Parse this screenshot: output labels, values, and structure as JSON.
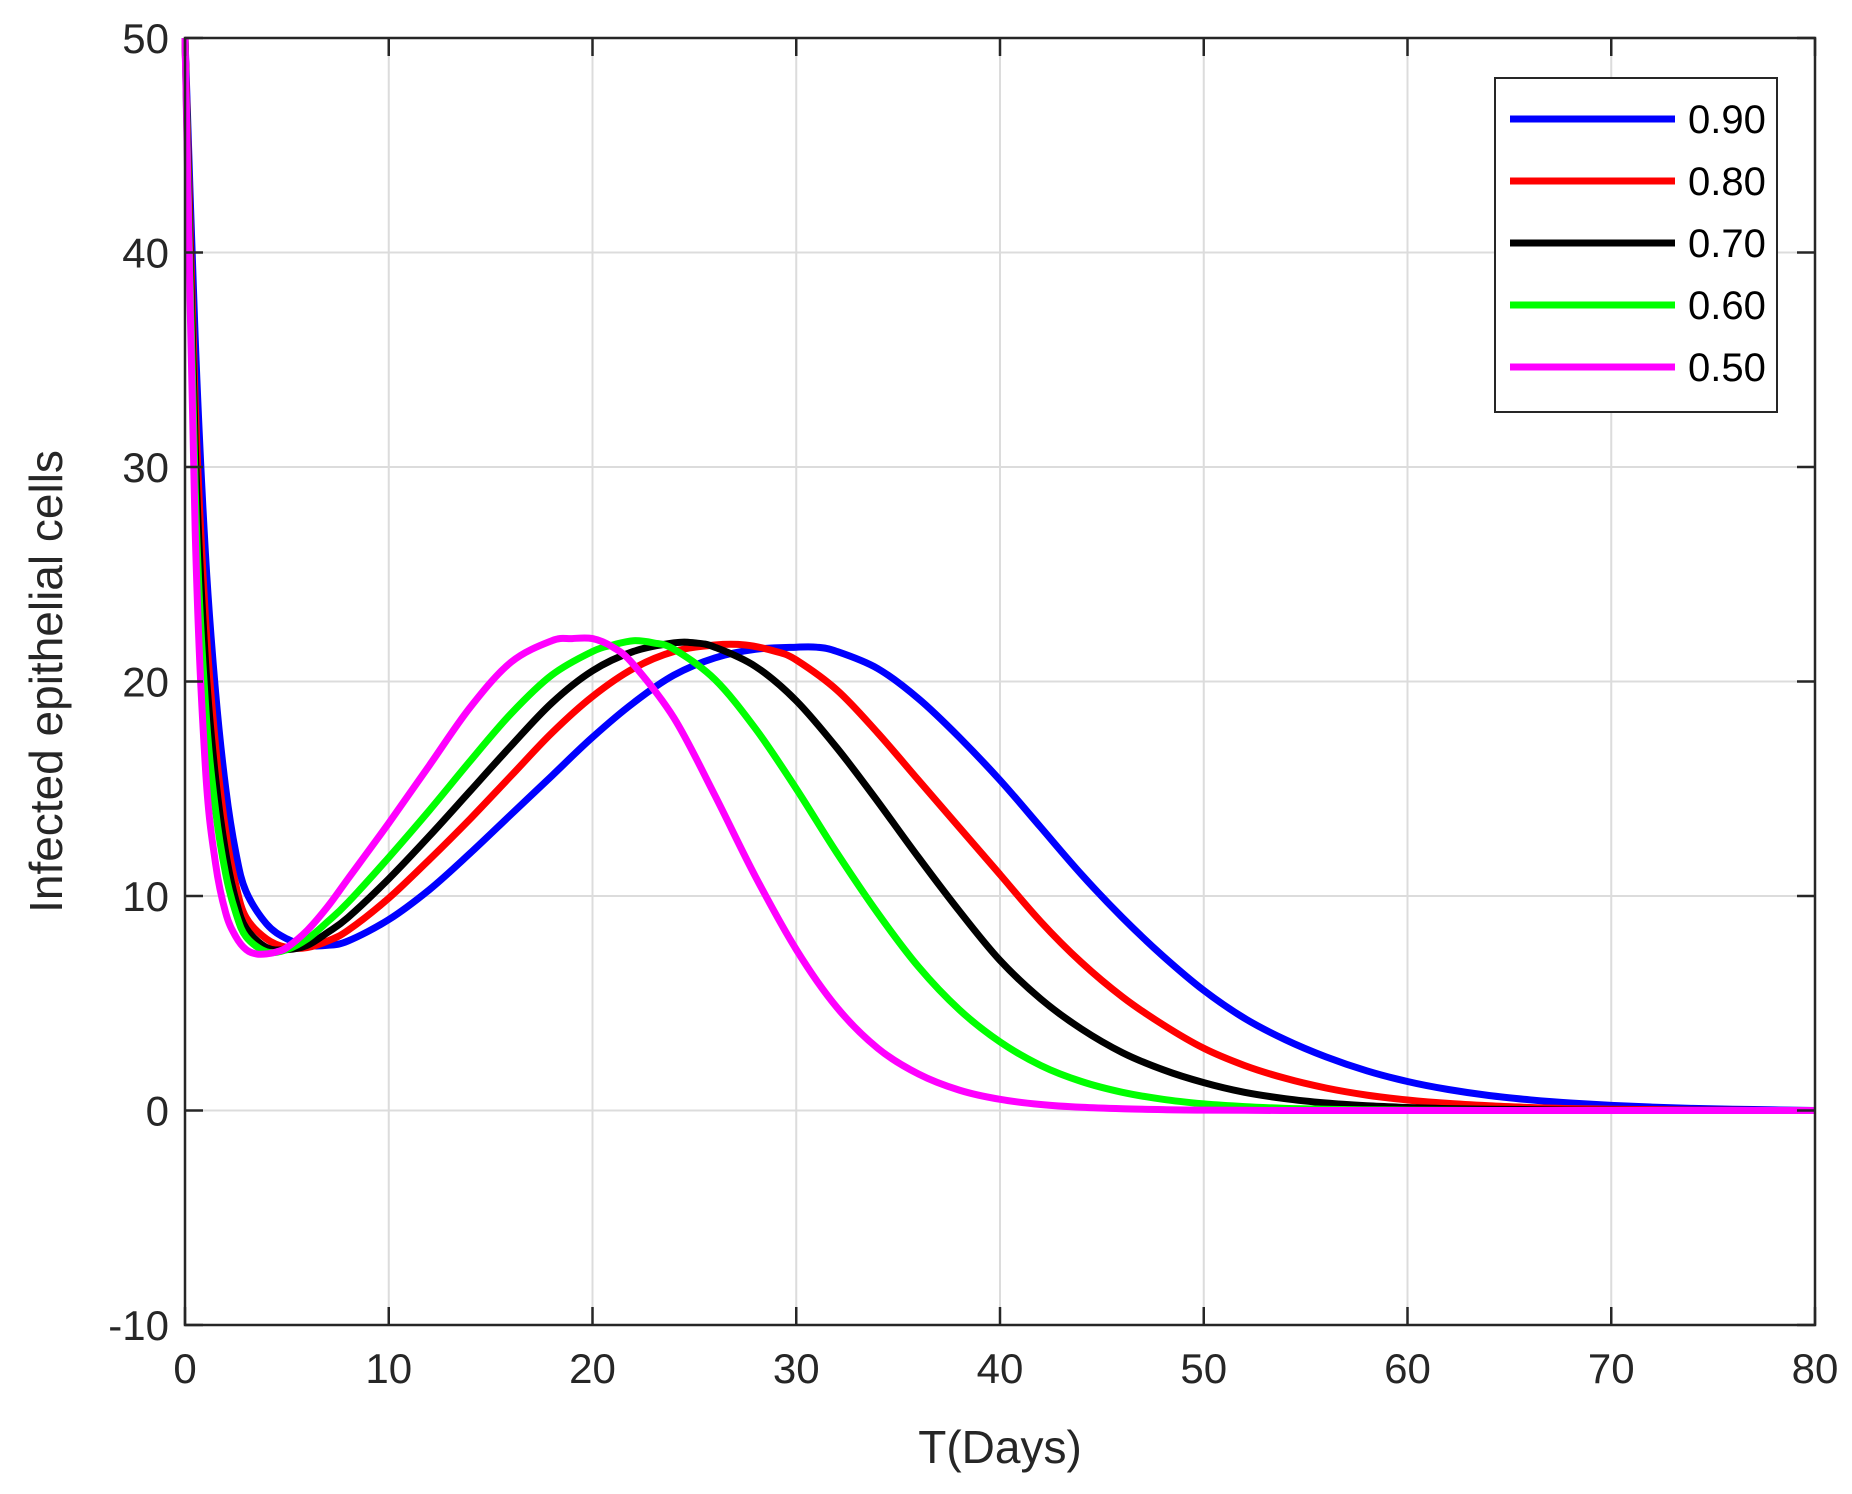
{
  "chart_data": {
    "type": "line",
    "title": "",
    "xlabel": "T(Days)",
    "ylabel": "Infected epithelial cells",
    "xlim": [
      0,
      80
    ],
    "ylim": [
      -10,
      50
    ],
    "xticks": [
      0,
      10,
      20,
      30,
      40,
      50,
      60,
      70,
      80
    ],
    "yticks": [
      -10,
      0,
      10,
      20,
      30,
      40,
      50
    ],
    "grid": true,
    "legend_position": "top-right",
    "series": [
      {
        "name": "0.90",
        "color": "#0000ff",
        "x": [
          0,
          0.5,
          1,
          1.5,
          2,
          2.5,
          3,
          4,
          5,
          6,
          7,
          8,
          10,
          12,
          14,
          16,
          18,
          20,
          22,
          24,
          26,
          28,
          30,
          31,
          32,
          34,
          36,
          38,
          40,
          42,
          44,
          46,
          48,
          50,
          52,
          54,
          56,
          58,
          60,
          62,
          64,
          66,
          68,
          70,
          72,
          74,
          76,
          78,
          80
        ],
        "y": [
          50,
          36,
          26,
          19.5,
          15,
          12,
          10.2,
          8.7,
          8,
          7.7,
          7.7,
          7.9,
          8.9,
          10.3,
          12,
          13.8,
          15.6,
          17.4,
          19,
          20.3,
          21.1,
          21.5,
          21.6,
          21.6,
          21.4,
          20.6,
          19.2,
          17.4,
          15.4,
          13.2,
          11,
          9,
          7.2,
          5.6,
          4.3,
          3.3,
          2.5,
          1.85,
          1.35,
          0.98,
          0.7,
          0.5,
          0.35,
          0.24,
          0.16,
          0.1,
          0.06,
          0.03,
          0
        ]
      },
      {
        "name": "0.80",
        "color": "#ff0000",
        "x": [
          0,
          0.5,
          1,
          1.5,
          2,
          2.5,
          3,
          4,
          5,
          6,
          7,
          8,
          10,
          12,
          14,
          16,
          18,
          20,
          22,
          24,
          26,
          27.5,
          29,
          30,
          32,
          34,
          36,
          38,
          40,
          42,
          44,
          46,
          48,
          50,
          52,
          54,
          56,
          58,
          60,
          62,
          64,
          66,
          68,
          70,
          72,
          74,
          76,
          78,
          80
        ],
        "y": [
          50,
          33,
          23,
          17,
          13,
          10.5,
          9,
          8,
          7.6,
          7.6,
          7.9,
          8.4,
          9.9,
          11.7,
          13.6,
          15.6,
          17.6,
          19.3,
          20.6,
          21.4,
          21.7,
          21.7,
          21.4,
          21,
          19.6,
          17.6,
          15.4,
          13.2,
          11,
          8.8,
          6.9,
          5.3,
          4,
          2.9,
          2.1,
          1.5,
          1.05,
          0.72,
          0.49,
          0.33,
          0.22,
          0.14,
          0.09,
          0.06,
          0.04,
          0.02,
          0.01,
          0,
          0
        ]
      },
      {
        "name": "0.70",
        "color": "#000000",
        "x": [
          0,
          0.5,
          1,
          1.5,
          2,
          2.5,
          3,
          4,
          5,
          6,
          7,
          8,
          10,
          12,
          14,
          16,
          18,
          20,
          22,
          24,
          25,
          26,
          28,
          30,
          32,
          34,
          36,
          38,
          40,
          42,
          44,
          46,
          48,
          50,
          52,
          54,
          56,
          58,
          60,
          62,
          64,
          66,
          68,
          70,
          72,
          74,
          76,
          78,
          80
        ],
        "y": [
          50,
          31,
          21,
          15.5,
          12,
          9.8,
          8.5,
          7.6,
          7.5,
          7.7,
          8.3,
          9,
          10.8,
          12.8,
          14.9,
          17,
          19,
          20.5,
          21.4,
          21.8,
          21.8,
          21.6,
          20.7,
          19.1,
          16.9,
          14.4,
          11.8,
          9.3,
          7,
          5.2,
          3.8,
          2.7,
          1.9,
          1.3,
          0.85,
          0.55,
          0.35,
          0.22,
          0.14,
          0.09,
          0.06,
          0.04,
          0.02,
          0.01,
          0,
          0,
          0,
          0,
          0
        ]
      },
      {
        "name": "0.60",
        "color": "#00ff00",
        "x": [
          0,
          0.5,
          1,
          1.5,
          2,
          2.5,
          3,
          4,
          5,
          6,
          7,
          8,
          10,
          12,
          14,
          16,
          18,
          20,
          21,
          22,
          23,
          24,
          26,
          28,
          30,
          32,
          34,
          36,
          38,
          40,
          42,
          44,
          46,
          48,
          50,
          52,
          54,
          56,
          58,
          60,
          62,
          64,
          66,
          68,
          70,
          72,
          74,
          76,
          78,
          80
        ],
        "y": [
          50,
          29,
          19,
          14,
          11,
          9.2,
          8.1,
          7.4,
          7.5,
          8,
          8.8,
          9.7,
          11.8,
          14,
          16.3,
          18.5,
          20.3,
          21.4,
          21.7,
          21.9,
          21.8,
          21.5,
          20.1,
          17.8,
          15,
          12,
          9.2,
          6.7,
          4.7,
          3.2,
          2.1,
          1.35,
          0.85,
          0.52,
          0.31,
          0.18,
          0.1,
          0.06,
          0.03,
          0.02,
          0.01,
          0,
          0,
          0,
          0,
          0,
          0,
          0,
          0,
          0
        ]
      },
      {
        "name": "0.50",
        "color": "#ff00ff",
        "x": [
          0,
          0.5,
          1,
          1.5,
          2,
          2.5,
          3,
          3.5,
          4,
          4.5,
          5,
          6,
          7,
          8,
          10,
          12,
          14,
          16,
          18,
          19,
          20,
          21,
          22,
          24,
          26,
          28,
          30,
          32,
          34,
          36,
          38,
          40,
          42,
          44,
          46,
          48,
          50,
          52,
          54,
          56,
          58,
          60,
          62,
          64,
          66,
          68,
          70,
          72,
          74,
          76,
          78,
          80
        ],
        "y": [
          50,
          27,
          16,
          11.5,
          9.2,
          8.1,
          7.5,
          7.3,
          7.3,
          7.4,
          7.6,
          8.4,
          9.5,
          10.8,
          13.4,
          16.1,
          18.8,
          20.9,
          21.9,
          22,
          22,
          21.6,
          20.8,
          18.3,
          14.7,
          10.9,
          7.5,
          4.8,
          2.9,
          1.7,
          0.95,
          0.52,
          0.28,
          0.15,
          0.08,
          0.04,
          0.02,
          0.01,
          0,
          0,
          0,
          0,
          0,
          0,
          0,
          0,
          0,
          0,
          0,
          0,
          0,
          0
        ]
      }
    ]
  }
}
